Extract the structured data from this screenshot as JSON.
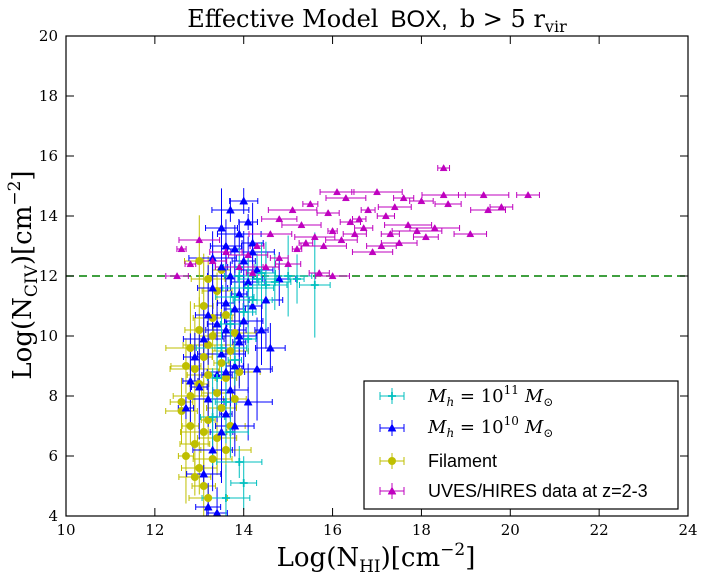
{
  "chart_data": {
    "type": "scatter",
    "title": {
      "part1": "Effective Model",
      "part2": "BOX,",
      "part3": "b  >  5 r",
      "part3_sub": "vir"
    },
    "xlabel": {
      "main": "Log(N",
      "sub": "HI",
      "after": ")[cm",
      "sup": "−2",
      "end": "]"
    },
    "ylabel": {
      "main": "Log(N",
      "sub": "CIV",
      "after": ")[cm",
      "sup": "−2",
      "end": "]"
    },
    "xlim": [
      10,
      24
    ],
    "ylim": [
      4,
      20
    ],
    "xticks": [
      10,
      12,
      14,
      16,
      18,
      20,
      22,
      24
    ],
    "yticks": [
      4,
      6,
      8,
      10,
      12,
      14,
      16,
      18,
      20
    ],
    "hline": {
      "y": 12,
      "color": "#008000",
      "style": "dashed"
    },
    "legend_position": "lower-right",
    "colors": {
      "cyan": "#00bfbf",
      "blue": "#0000ff",
      "olive": "#bfbf00",
      "magenta": "#bf00bf"
    },
    "series": [
      {
        "name": "Mh_1e11",
        "color": "#00bfbf",
        "marker": "plus",
        "points": [
          [
            13.9,
            12.0
          ],
          [
            14.1,
            11.6
          ],
          [
            14.3,
            11.9
          ],
          [
            14.5,
            11.7
          ],
          [
            14.7,
            11.8
          ],
          [
            15.0,
            12.0
          ],
          [
            15.2,
            11.9
          ],
          [
            15.6,
            11.7
          ],
          [
            13.8,
            11.3
          ],
          [
            14.2,
            11.2
          ],
          [
            13.7,
            10.4
          ],
          [
            14.0,
            10.8
          ],
          [
            13.5,
            9.6
          ],
          [
            13.8,
            9.2
          ],
          [
            13.4,
            8.6
          ],
          [
            13.6,
            7.8
          ],
          [
            13.3,
            7.3
          ],
          [
            13.7,
            6.8
          ],
          [
            13.9,
            5.8
          ],
          [
            14.0,
            5.1
          ],
          [
            13.6,
            4.6
          ],
          [
            14.1,
            9.9
          ],
          [
            13.9,
            12.3
          ],
          [
            14.4,
            12.1
          ]
        ]
      },
      {
        "name": "Mh_1e10",
        "color": "#0000ff",
        "marker": "triangle",
        "points": [
          [
            13.1,
            5.4
          ],
          [
            13.2,
            4.3
          ],
          [
            13.4,
            4.1
          ],
          [
            13.3,
            6.2
          ],
          [
            13.5,
            6.8
          ],
          [
            13.6,
            7.4
          ],
          [
            13.2,
            7.9
          ],
          [
            13.0,
            8.3
          ],
          [
            13.4,
            8.7
          ],
          [
            13.7,
            8.2
          ],
          [
            13.8,
            9.0
          ],
          [
            13.5,
            9.4
          ],
          [
            13.9,
            9.8
          ],
          [
            13.6,
            10.2
          ],
          [
            14.0,
            10.5
          ],
          [
            13.8,
            10.9
          ],
          [
            14.2,
            11.0
          ],
          [
            13.9,
            11.4
          ],
          [
            14.1,
            11.8
          ],
          [
            13.7,
            12.0
          ],
          [
            14.3,
            12.2
          ],
          [
            14.0,
            12.5
          ],
          [
            13.8,
            12.9
          ],
          [
            14.2,
            13.1
          ],
          [
            13.9,
            13.4
          ],
          [
            14.1,
            13.8
          ],
          [
            13.7,
            14.2
          ],
          [
            14.0,
            14.5
          ],
          [
            13.6,
            13.0
          ],
          [
            13.5,
            12.3
          ],
          [
            13.3,
            11.6
          ],
          [
            13.2,
            10.7
          ],
          [
            13.1,
            9.9
          ],
          [
            12.9,
            9.3
          ],
          [
            12.8,
            8.5
          ],
          [
            12.7,
            7.6
          ],
          [
            13.4,
            10.4
          ],
          [
            14.4,
            10.2
          ],
          [
            14.6,
            9.6
          ],
          [
            14.5,
            11.2
          ],
          [
            14.8,
            11.9
          ],
          [
            13.6,
            11.1
          ],
          [
            13.8,
            7.0
          ],
          [
            14.1,
            7.8
          ],
          [
            14.3,
            8.9
          ],
          [
            13.3,
            12.6
          ],
          [
            13.5,
            13.6
          ],
          [
            14.2,
            12.8
          ],
          [
            13.9,
            10.0
          ],
          [
            13.6,
            8.8
          ]
        ]
      },
      {
        "name": "Filament",
        "color": "#bfbf00",
        "marker": "circle",
        "points": [
          [
            12.6,
            7.5
          ],
          [
            12.8,
            7.0
          ],
          [
            12.9,
            6.4
          ],
          [
            12.7,
            6.0
          ],
          [
            13.0,
            5.6
          ],
          [
            13.1,
            5.0
          ],
          [
            13.2,
            4.6
          ],
          [
            12.9,
            5.3
          ],
          [
            13.3,
            5.9
          ],
          [
            12.8,
            8.0
          ],
          [
            13.0,
            8.4
          ],
          [
            12.9,
            8.9
          ],
          [
            13.1,
            9.3
          ],
          [
            13.2,
            9.7
          ],
          [
            13.0,
            10.2
          ],
          [
            13.3,
            10.6
          ],
          [
            13.1,
            11.0
          ],
          [
            13.4,
            11.5
          ],
          [
            13.2,
            11.9
          ],
          [
            13.5,
            12.2
          ],
          [
            13.3,
            10.0
          ],
          [
            13.5,
            9.1
          ],
          [
            13.6,
            8.6
          ],
          [
            13.4,
            8.1
          ],
          [
            13.7,
            9.5
          ],
          [
            13.8,
            10.1
          ],
          [
            13.6,
            10.7
          ],
          [
            13.5,
            7.6
          ],
          [
            13.2,
            7.2
          ],
          [
            13.4,
            6.6
          ],
          [
            13.6,
            6.2
          ],
          [
            13.7,
            7.0
          ],
          [
            13.0,
            12.5
          ],
          [
            12.7,
            9.0
          ],
          [
            12.6,
            7.8
          ],
          [
            13.9,
            8.8
          ],
          [
            13.8,
            7.9
          ],
          [
            13.1,
            6.8
          ],
          [
            12.8,
            9.6
          ],
          [
            13.2,
            8.7
          ]
        ]
      },
      {
        "name": "UVES_HIRES",
        "color": "#bf00bf",
        "marker": "triangle",
        "points": [
          [
            12.5,
            12.0
          ],
          [
            12.6,
            12.9
          ],
          [
            12.8,
            12.4
          ],
          [
            13.0,
            13.2
          ],
          [
            13.3,
            12.5
          ],
          [
            13.6,
            12.8
          ],
          [
            13.9,
            12.3
          ],
          [
            14.2,
            12.1
          ],
          [
            14.5,
            12.3
          ],
          [
            14.8,
            12.6
          ],
          [
            15.0,
            12.4
          ],
          [
            15.2,
            12.9
          ],
          [
            15.4,
            13.1
          ],
          [
            15.6,
            13.3
          ],
          [
            15.8,
            13.0
          ],
          [
            16.0,
            13.5
          ],
          [
            16.2,
            13.2
          ],
          [
            16.4,
            13.8
          ],
          [
            16.5,
            13.4
          ],
          [
            16.7,
            13.6
          ],
          [
            16.9,
            12.8
          ],
          [
            17.1,
            13.0
          ],
          [
            17.3,
            13.4
          ],
          [
            17.5,
            13.1
          ],
          [
            17.7,
            13.7
          ],
          [
            17.9,
            13.5
          ],
          [
            18.1,
            13.3
          ],
          [
            18.3,
            13.6
          ],
          [
            18.5,
            14.7
          ],
          [
            18.6,
            14.4
          ],
          [
            18.5,
            15.6
          ],
          [
            17.2,
            14.0
          ],
          [
            16.8,
            14.2
          ],
          [
            16.3,
            14.6
          ],
          [
            16.1,
            14.8
          ],
          [
            17.0,
            14.8
          ],
          [
            17.6,
            14.6
          ],
          [
            18.0,
            14.5
          ],
          [
            15.9,
            14.1
          ],
          [
            15.5,
            14.4
          ],
          [
            15.1,
            14.2
          ],
          [
            14.8,
            13.9
          ],
          [
            14.6,
            13.4
          ],
          [
            15.3,
            13.7
          ],
          [
            15.7,
            12.1
          ],
          [
            16.0,
            12.0
          ],
          [
            14.3,
            13.0
          ],
          [
            14.1,
            12.7
          ],
          [
            19.4,
            14.7
          ],
          [
            19.5,
            14.2
          ],
          [
            19.8,
            14.3
          ],
          [
            20.4,
            14.7
          ],
          [
            19.1,
            13.4
          ],
          [
            17.4,
            14.3
          ],
          [
            16.6,
            13.9
          ]
        ]
      }
    ],
    "legend": [
      {
        "label_math": "M",
        "label_sub": "h",
        "label_eq": " = 10",
        "label_sup": "11",
        "label_unit": "M",
        "label_unit_sub": "⊙",
        "color": "#00bfbf",
        "marker": "plus"
      },
      {
        "label_math": "M",
        "label_sub": "h",
        "label_eq": " = 10",
        "label_sup": "10",
        "label_unit": "M",
        "label_unit_sub": "⊙",
        "color": "#0000ff",
        "marker": "triangle"
      },
      {
        "label": "Filament",
        "color": "#bfbf00",
        "marker": "circle"
      },
      {
        "label": "UVES/HIRES data at z=2-3",
        "color": "#bf00bf",
        "marker": "triangle"
      }
    ]
  }
}
